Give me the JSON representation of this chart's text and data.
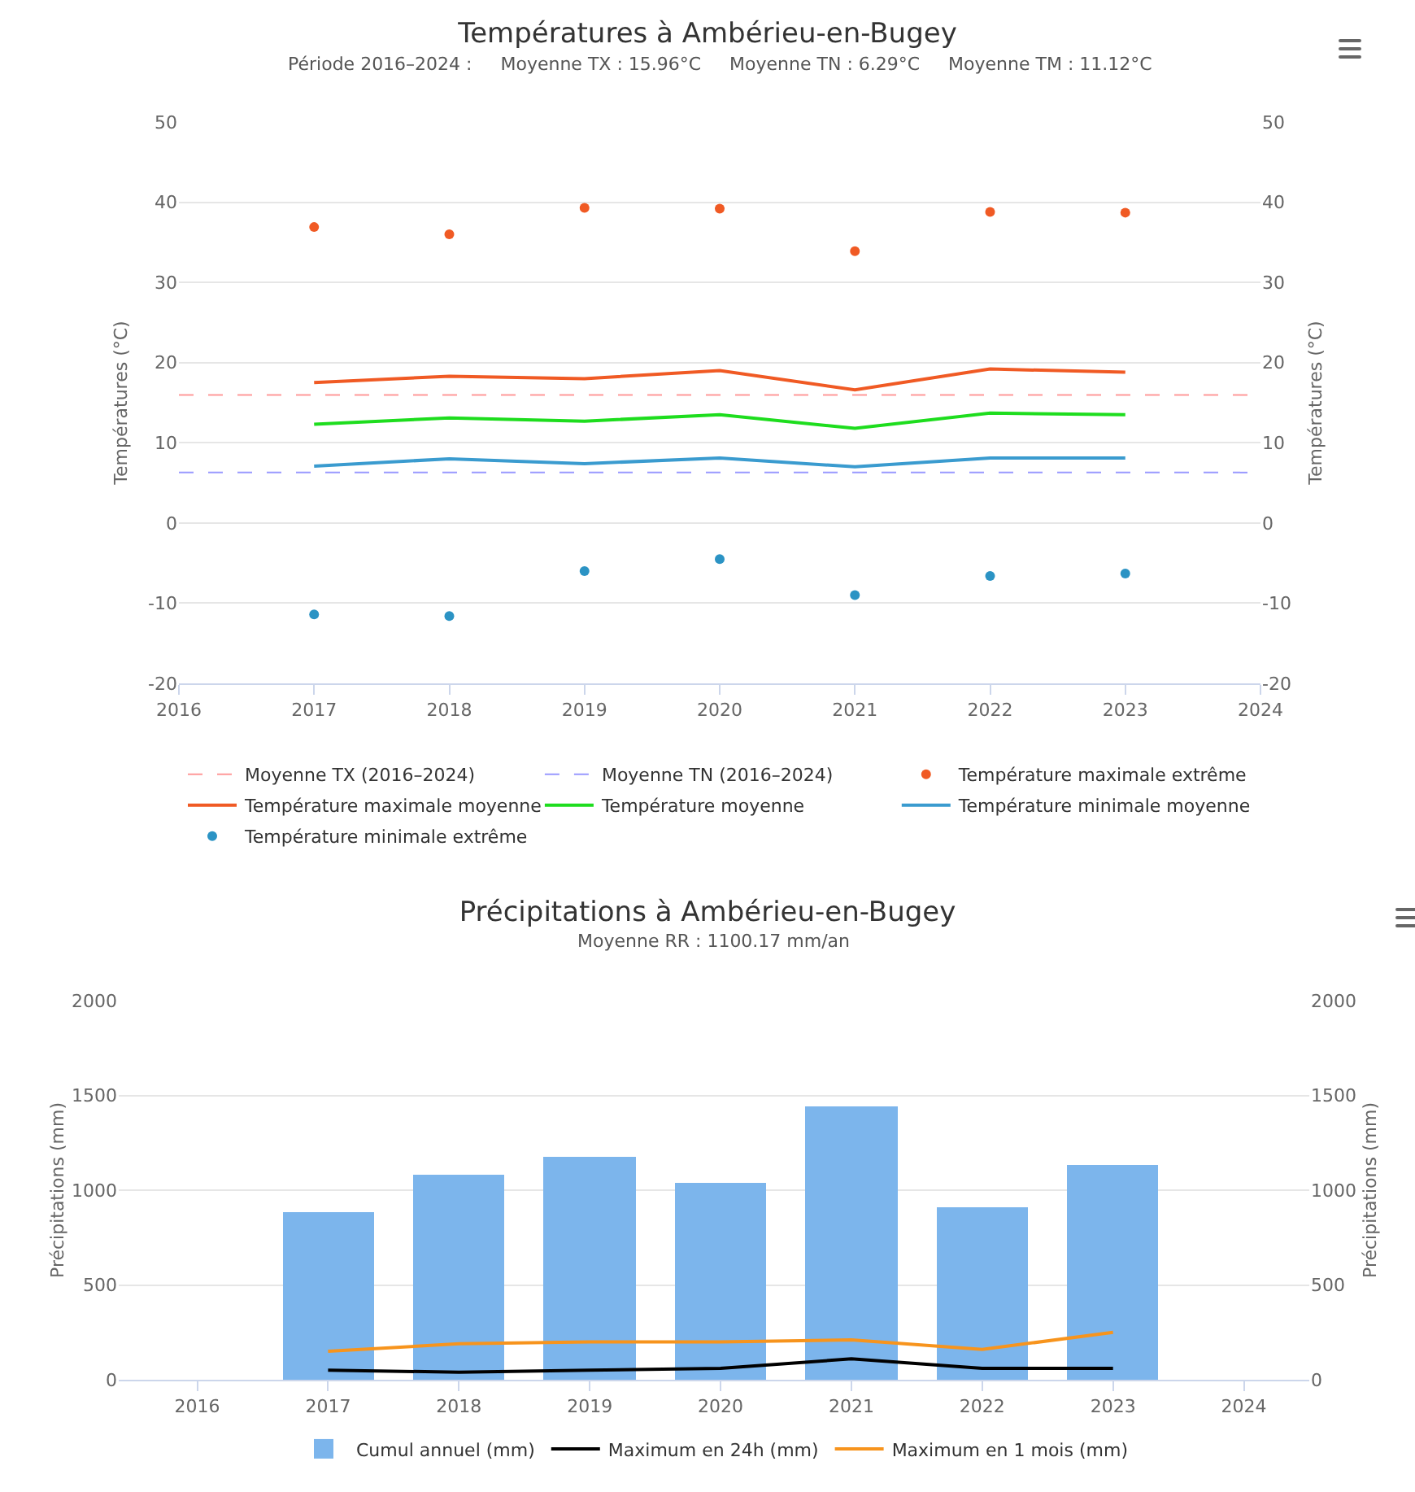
{
  "chart_data": [
    {
      "type": "line",
      "title": "Températures à Ambérieu-en-Bugey",
      "subtitle": "Période 2016–2024 :     Moyenne TX : 15.96°C     Moyenne TN : 6.29°C     Moyenne TM : 11.12°C",
      "x": [
        2017,
        2018,
        2019,
        2020,
        2021,
        2022,
        2023
      ],
      "series": [
        {
          "name": "Température maximale extrême",
          "type": "scatter",
          "color": "#f05a24",
          "values": [
            36.9,
            36.0,
            39.3,
            39.2,
            33.9,
            38.8,
            38.7
          ]
        },
        {
          "name": "Température maximale moyenne",
          "color": "#f05a24",
          "values": [
            17.5,
            18.3,
            18.0,
            19.0,
            16.6,
            19.2,
            18.8
          ]
        },
        {
          "name": "Température moyenne",
          "color": "#1edd1e",
          "values": [
            12.3,
            13.1,
            12.7,
            13.5,
            11.8,
            13.7,
            13.5
          ]
        },
        {
          "name": "Température minimale moyenne",
          "color": "#3a9bcf",
          "values": [
            7.1,
            8.0,
            7.4,
            8.1,
            7.0,
            8.1,
            8.1
          ]
        },
        {
          "name": "Température minimale extrême",
          "type": "scatter",
          "color": "#2b93c4",
          "values": [
            -11.4,
            -11.6,
            -6.0,
            -4.5,
            -9.0,
            -6.6,
            -6.3
          ]
        }
      ],
      "ref_lines": [
        {
          "axis": "y",
          "value": 15.96,
          "label": "Moyenne TX (2016–2024)",
          "color": "#ff9999",
          "line_style": "dashed"
        },
        {
          "axis": "y",
          "value": 6.29,
          "label": "Moyenne TN (2016–2024)",
          "color": "#9999ff",
          "line_style": "dashed"
        }
      ],
      "xlim": [
        2016,
        2024
      ],
      "xticks": [
        2016,
        2017,
        2018,
        2019,
        2020,
        2021,
        2022,
        2023,
        2024
      ],
      "ylim": [
        -20,
        50
      ],
      "yticks": [
        -20,
        -10,
        0,
        10,
        20,
        30,
        40,
        50
      ],
      "ylabel": "Températures (°C)",
      "y2lim": [
        -20,
        50
      ],
      "y2ticks": [
        -20,
        -10,
        0,
        10,
        20,
        30,
        40,
        50
      ],
      "y2label": "Températures (°C)",
      "grid": "y",
      "legend": "bottom"
    },
    {
      "type": "bar",
      "title": "Précipitations à Ambérieu-en-Bugey",
      "subtitle": "Moyenne RR : 1100.17 mm/an",
      "x": [
        2017,
        2018,
        2019,
        2020,
        2021,
        2022,
        2023
      ],
      "series": [
        {
          "name": "Cumul annuel (mm)",
          "color": "#7cb5ec",
          "values": [
            880,
            1080,
            1180,
            1040,
            1440,
            910,
            1130
          ]
        },
        {
          "name": "Maximum en 24h (mm)",
          "type": "line",
          "color": "#000000",
          "values": [
            50,
            40,
            50,
            60,
            110,
            60,
            60
          ]
        },
        {
          "name": "Maximum en 1 mois (mm)",
          "type": "line",
          "color": "#f7941d",
          "values": [
            150,
            190,
            200,
            200,
            210,
            160,
            250
          ]
        }
      ],
      "xlim": [
        2015.4,
        2024.5
      ],
      "xticks": [
        2016,
        2017,
        2018,
        2019,
        2020,
        2021,
        2022,
        2023,
        2024
      ],
      "ylim": [
        0,
        2000
      ],
      "yticks": [
        0,
        500,
        1000,
        1500,
        2000
      ],
      "ylabel": "Précipitations (mm)",
      "y2lim": [
        0,
        2000
      ],
      "y2ticks": [
        0,
        500,
        1000,
        1500,
        2000
      ],
      "y2label": "Précipitations (mm)",
      "grid": "y",
      "legend": "bottom"
    }
  ]
}
